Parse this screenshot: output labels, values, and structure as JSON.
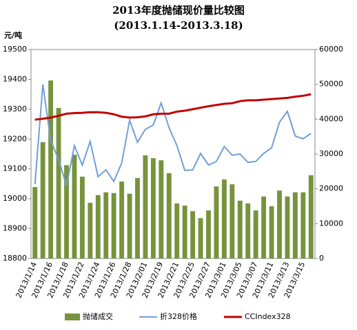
{
  "chart_data": {
    "type": "bar_line",
    "title": "2013年度抛储现价量比较图",
    "subtitle": "(2013.1.14-2013.3.18)",
    "ylabel": "元/吨",
    "categories": [
      "2013/1/14",
      null,
      "2013/1/16",
      null,
      "2013/1/18",
      null,
      "2013/1/22",
      null,
      "2013/1/24",
      null,
      "2013/1/26",
      null,
      "2013/1/28",
      null,
      "2013/2/01",
      null,
      "2013/2/19",
      null,
      "2013/2/21",
      null,
      "2013/2/25",
      null,
      "2013/2/27",
      null,
      "2013/3/01",
      null,
      "2013/3/05",
      null,
      "2013/3/07",
      null,
      "2013/3/11",
      null,
      "2013/3/13",
      null,
      "2013/3/15",
      null
    ],
    "series": [
      {
        "name": "抛储成交",
        "type": "bar",
        "axis": "y2",
        "color": "#77933c",
        "values": [
          20500,
          33400,
          51100,
          43200,
          26800,
          29800,
          23500,
          16000,
          18200,
          19000,
          18800,
          22100,
          18600,
          23100,
          29600,
          28800,
          28200,
          24500,
          15800,
          15200,
          13600,
          11600,
          13800,
          20700,
          22700,
          21300,
          16600,
          15800,
          13800,
          17800,
          15000,
          19500,
          17800,
          19000,
          19000,
          23900
        ]
      },
      {
        "name": "折328价格",
        "type": "line",
        "axis": "y",
        "color": "#6f9fd8",
        "values": [
          19049,
          19383,
          19194,
          19132,
          19044,
          19178,
          19113,
          19192,
          19074,
          19097,
          19058,
          19120,
          19263,
          19189,
          19233,
          19247,
          19321,
          19238,
          19178,
          19095,
          19097,
          19152,
          19113,
          19125,
          19175,
          19146,
          19150,
          19122,
          19125,
          19152,
          19171,
          19256,
          19293,
          19210,
          19201,
          19219
        ]
      },
      {
        "name": "CCIndex328",
        "type": "line",
        "axis": "y",
        "color": "#c00000",
        "values": [
          19265,
          19268,
          19272,
          19278,
          19285,
          19287,
          19288,
          19290,
          19290,
          19288,
          19283,
          19275,
          19272,
          19273,
          19276,
          19283,
          19285,
          19285,
          19292,
          19295,
          19300,
          19305,
          19310,
          19314,
          19318,
          19320,
          19327,
          19330,
          19330,
          19332,
          19334,
          19336,
          19338,
          19342,
          19345,
          19350
        ]
      }
    ],
    "ylim": [
      18800,
      19500
    ],
    "yticks": [
      18800,
      18900,
      19000,
      19100,
      19200,
      19300,
      19400,
      19500
    ],
    "y2lim": [
      0,
      60000
    ],
    "y2ticks": [
      0,
      10000,
      20000,
      30000,
      40000,
      50000,
      60000
    ],
    "grid": false,
    "legend": "bottom"
  }
}
